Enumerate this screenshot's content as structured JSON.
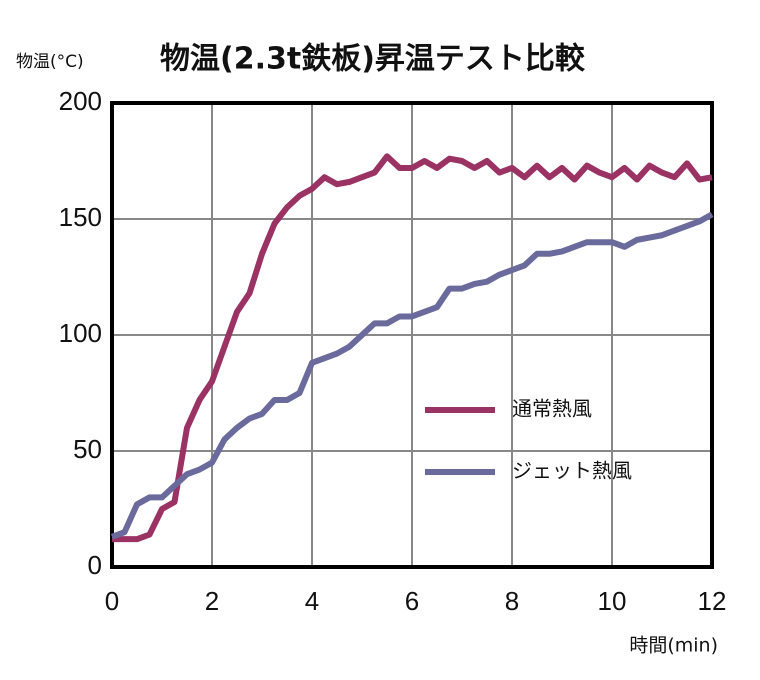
{
  "chart_data": {
    "type": "line",
    "title": "物温(2.3t鉄板)昇温テスト比較",
    "y_label": "物温(°C)",
    "x_label": "時間(min)",
    "x": [
      0,
      0.25,
      0.5,
      0.75,
      1,
      1.25,
      1.5,
      1.75,
      2,
      2.25,
      2.5,
      2.75,
      3,
      3.25,
      3.5,
      3.75,
      4,
      4.25,
      4.5,
      4.75,
      5,
      5.25,
      5.5,
      5.75,
      6,
      6.25,
      6.5,
      6.75,
      7,
      7.25,
      7.5,
      7.75,
      8,
      8.25,
      8.5,
      8.75,
      9,
      9.25,
      9.5,
      9.75,
      10,
      10.25,
      10.5,
      10.75,
      11,
      11.25,
      11.5,
      11.75,
      12
    ],
    "series": [
      {
        "name": "通常熱風",
        "color": "#9b3264",
        "values": [
          12,
          12,
          12,
          14,
          25,
          28,
          60,
          72,
          80,
          95,
          110,
          118,
          135,
          148,
          155,
          160,
          163,
          168,
          165,
          166,
          168,
          170,
          177,
          172,
          172,
          175,
          172,
          176,
          175,
          172,
          175,
          170,
          172,
          168,
          173,
          168,
          172,
          167,
          173,
          170,
          168,
          172,
          167,
          173,
          170,
          168,
          174,
          167,
          168
        ]
      },
      {
        "name": "ジェット熱風",
        "color": "#6a6a9c",
        "values": [
          13,
          15,
          27,
          30,
          30,
          35,
          40,
          42,
          45,
          55,
          60,
          64,
          66,
          72,
          72,
          75,
          88,
          90,
          92,
          95,
          100,
          105,
          105,
          108,
          108,
          110,
          112,
          120,
          120,
          122,
          123,
          126,
          128,
          130,
          135,
          135,
          136,
          138,
          140,
          140,
          140,
          138,
          141,
          142,
          143,
          145,
          147,
          149,
          152
        ]
      }
    ],
    "xlim": [
      0,
      12
    ],
    "xticks": [
      0,
      2,
      4,
      6,
      8,
      10,
      12
    ],
    "ylim": [
      0,
      200
    ],
    "yticks": [
      0,
      50,
      100,
      150,
      200
    ],
    "grid": true,
    "legend": "right"
  }
}
